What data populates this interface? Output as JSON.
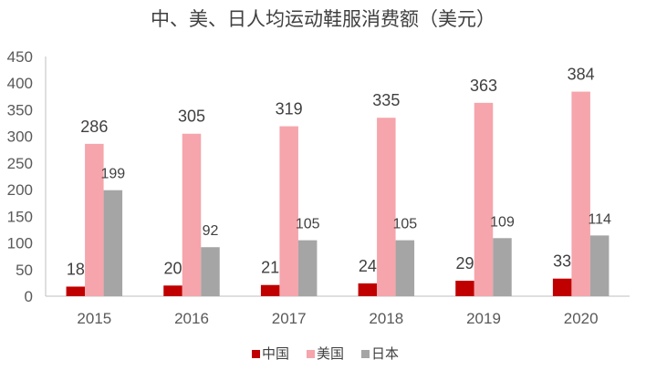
{
  "chart_data": {
    "type": "bar",
    "title": "中、美、日人均运动鞋服消费额（美元）",
    "categories": [
      "2015",
      "2016",
      "2017",
      "2018",
      "2019",
      "2020"
    ],
    "series": [
      {
        "name": "中国",
        "values": [
          18,
          20,
          21,
          24,
          29,
          33
        ],
        "color": "#C00000"
      },
      {
        "name": "美国",
        "values": [
          286,
          305,
          319,
          335,
          363,
          384
        ],
        "color": "#F5A5AB"
      },
      {
        "name": "日本",
        "values": [
          199,
          92,
          105,
          105,
          109,
          114
        ],
        "color": "#A5A5A5"
      }
    ],
    "ylim": [
      0,
      450
    ],
    "yticks": [
      0,
      50,
      100,
      150,
      200,
      250,
      300,
      350,
      400,
      450
    ],
    "grid": false,
    "legend": "bottom"
  }
}
